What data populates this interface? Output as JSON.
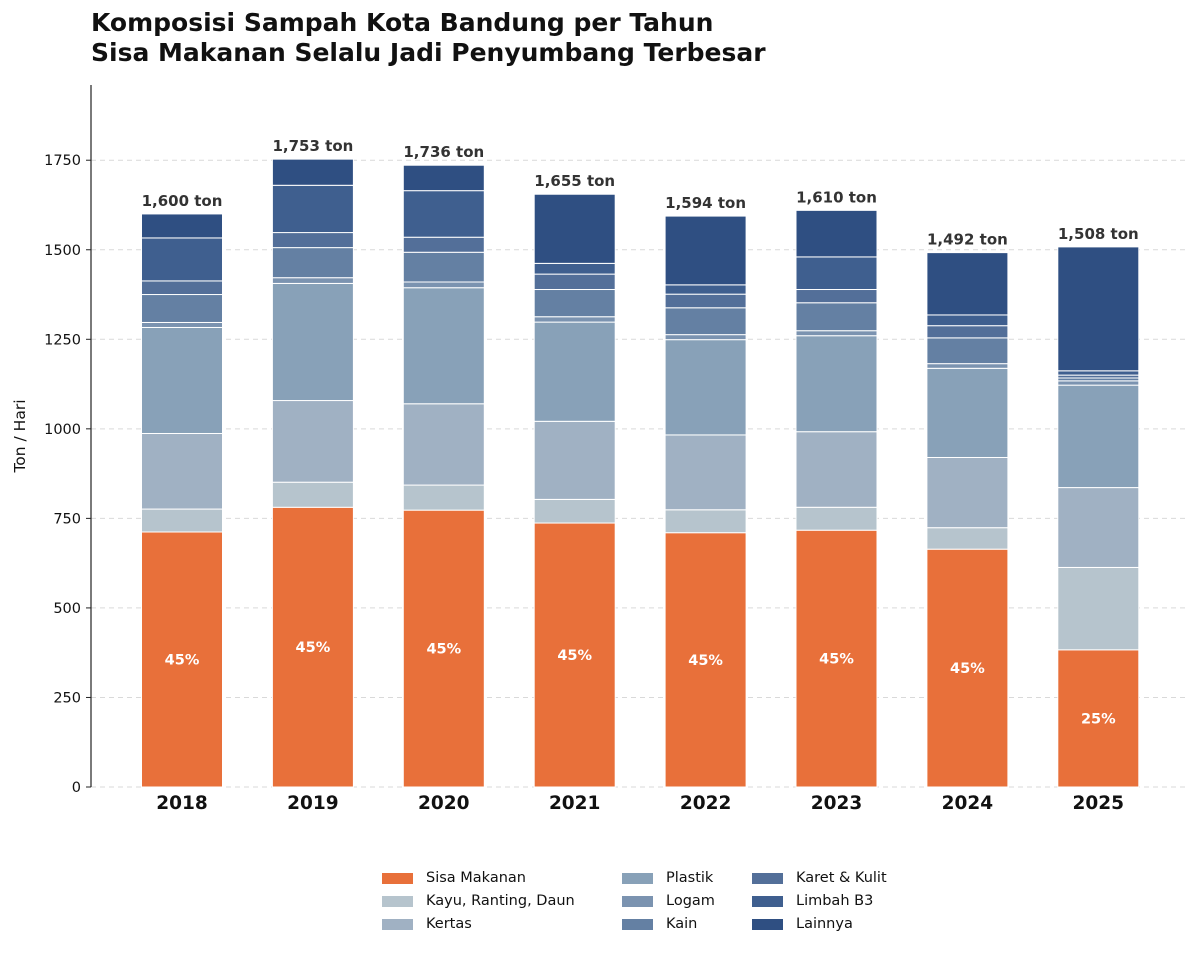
{
  "chart_data": {
    "type": "bar",
    "stacked": true,
    "title_lines": [
      "Komposisi Sampah Kota Bandung per Tahun",
      "Sisa Makanan Selalu Jadi Penyumbang Terbesar"
    ],
    "xlabel": "",
    "ylabel": "Ton / Hari",
    "ylim": [
      0,
      1960
    ],
    "yticks": [
      0,
      250,
      500,
      750,
      1000,
      1250,
      1500,
      1750
    ],
    "grid": "horizontal dashed",
    "legend_position": "bottom-center",
    "categories": [
      "2018",
      "2019",
      "2020",
      "2021",
      "2022",
      "2023",
      "2024",
      "2025"
    ],
    "series": [
      {
        "name": "Sisa Makanan",
        "color": "#e8703a",
        "values": [
          712,
          781,
          773,
          737,
          710,
          717,
          664,
          383
        ]
      },
      {
        "name": "Kayu, Ranting, Daun",
        "color": "#b6c4cd",
        "values": [
          64,
          70,
          70,
          66,
          64,
          64,
          60,
          230
        ]
      },
      {
        "name": "Kertas",
        "color": "#a0b1c3",
        "values": [
          211,
          228,
          227,
          218,
          209,
          211,
          196,
          223
        ]
      },
      {
        "name": "Plastik",
        "color": "#88a1b8",
        "values": [
          296,
          327,
          324,
          277,
          266,
          268,
          249,
          286
        ]
      },
      {
        "name": "Logam",
        "color": "#7b93b0",
        "values": [
          14,
          16,
          16,
          15,
          14,
          14,
          13,
          12
        ]
      },
      {
        "name": "Kain",
        "color": "#6480a3",
        "values": [
          78,
          84,
          83,
          76,
          75,
          78,
          72,
          8
        ]
      },
      {
        "name": "Karet & Kulit",
        "color": "#536f99",
        "values": [
          38,
          42,
          42,
          43,
          38,
          37,
          34,
          8
        ]
      },
      {
        "name": "Limbah B3",
        "color": "#3f5f8f",
        "values": [
          120,
          132,
          130,
          30,
          26,
          91,
          30,
          12
        ]
      },
      {
        "name": "Lainnya",
        "color": "#2f4f82",
        "values": [
          67,
          73,
          71,
          193,
          192,
          130,
          174,
          346
        ]
      }
    ],
    "total_labels": [
      "1,600 ton",
      "1,753 ton",
      "1,736 ton",
      "1,655 ton",
      "1,594 ton",
      "1,610 ton",
      "1,492 ton",
      "1,508 ton"
    ],
    "share_labels": [
      "45%",
      "45%",
      "45%",
      "45%",
      "45%",
      "45%",
      "45%",
      "25%"
    ]
  }
}
